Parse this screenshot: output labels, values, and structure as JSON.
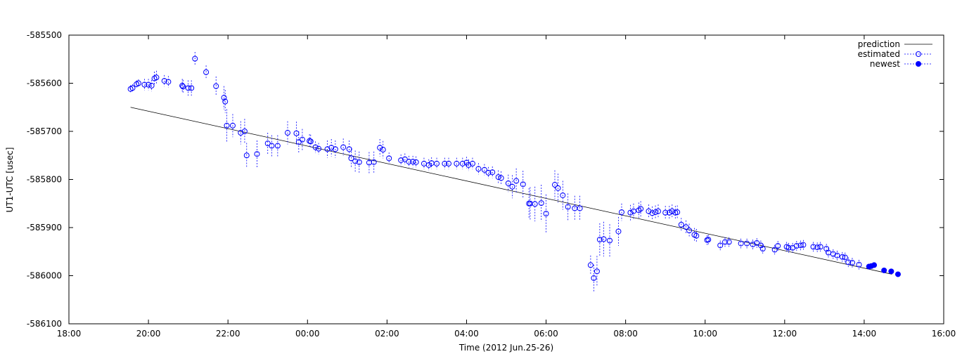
{
  "chart_data": {
    "type": "scatter",
    "xlabel": "Time (2012 Jun.25-26)",
    "ylabel": "UT1-UTC [usec]",
    "x_unit": "hours",
    "xlim": [
      18,
      40
    ],
    "ylim": [
      -586100,
      -585500
    ],
    "grid": false,
    "legend_position": "top-right",
    "x_ticks": [
      {
        "value": 18,
        "label": "18:00"
      },
      {
        "value": 20,
        "label": "20:00"
      },
      {
        "value": 22,
        "label": "22:00"
      },
      {
        "value": 24,
        "label": "00:00"
      },
      {
        "value": 26,
        "label": "02:00"
      },
      {
        "value": 28,
        "label": "04:00"
      },
      {
        "value": 30,
        "label": "06:00"
      },
      {
        "value": 32,
        "label": "08:00"
      },
      {
        "value": 34,
        "label": "10:00"
      },
      {
        "value": 36,
        "label": "12:00"
      },
      {
        "value": 38,
        "label": "14:00"
      },
      {
        "value": 40,
        "label": "16:00"
      }
    ],
    "y_ticks": [
      {
        "value": -585500,
        "label": "-585500"
      },
      {
        "value": -585600,
        "label": "-585600"
      },
      {
        "value": -585700,
        "label": "-585700"
      },
      {
        "value": -585800,
        "label": "-585800"
      },
      {
        "value": -585900,
        "label": "-585900"
      },
      {
        "value": -586000,
        "label": "-586000"
      },
      {
        "value": -586100,
        "label": "-586100"
      }
    ],
    "series": [
      {
        "name": "prediction",
        "type": "line",
        "color": "#000000",
        "x": [
          19.55,
          38.7
        ],
        "y": [
          -585650,
          -585997
        ]
      },
      {
        "name": "estimated",
        "type": "scatter-errorbar",
        "marker": "open-circle",
        "color": "#0000ff",
        "points": [
          [
            19.55,
            -585612,
            8
          ],
          [
            19.6,
            -585610,
            8
          ],
          [
            19.7,
            -585602,
            8
          ],
          [
            19.75,
            -585600,
            8
          ],
          [
            19.9,
            -585603,
            12
          ],
          [
            20.0,
            -585603,
            12
          ],
          [
            20.08,
            -585605,
            12
          ],
          [
            20.15,
            -585590,
            14
          ],
          [
            20.2,
            -585588,
            14
          ],
          [
            20.4,
            -585595,
            12
          ],
          [
            20.5,
            -585597,
            12
          ],
          [
            20.85,
            -585605,
            14
          ],
          [
            20.87,
            -585607,
            14
          ],
          [
            21.0,
            -585610,
            16
          ],
          [
            21.08,
            -585610,
            16
          ],
          [
            21.17,
            -585549,
            14
          ],
          [
            21.45,
            -585577,
            14
          ],
          [
            21.7,
            -585606,
            20
          ],
          [
            21.9,
            -585630,
            24
          ],
          [
            21.93,
            -585638,
            24
          ],
          [
            21.97,
            -585688,
            34
          ],
          [
            22.12,
            -585688,
            24
          ],
          [
            22.32,
            -585703,
            24
          ],
          [
            22.42,
            -585700,
            26
          ],
          [
            22.47,
            -585750,
            26
          ],
          [
            22.73,
            -585747,
            28
          ],
          [
            23.0,
            -585725,
            22
          ],
          [
            23.1,
            -585730,
            22
          ],
          [
            23.25,
            -585730,
            22
          ],
          [
            23.5,
            -585703,
            24
          ],
          [
            23.72,
            -585704,
            24
          ],
          [
            23.78,
            -585722,
            22
          ],
          [
            23.87,
            -585717,
            22
          ],
          [
            24.05,
            -585720,
            14
          ],
          [
            24.08,
            -585721,
            14
          ],
          [
            24.2,
            -585733,
            12
          ],
          [
            24.28,
            -585736,
            12
          ],
          [
            24.5,
            -585737,
            18
          ],
          [
            24.6,
            -585734,
            18
          ],
          [
            24.7,
            -585737,
            18
          ],
          [
            24.9,
            -585733,
            18
          ],
          [
            25.05,
            -585737,
            18
          ],
          [
            25.1,
            -585756,
            20
          ],
          [
            25.2,
            -585762,
            22
          ],
          [
            25.3,
            -585764,
            22
          ],
          [
            25.55,
            -585765,
            22
          ],
          [
            25.67,
            -585764,
            22
          ],
          [
            25.82,
            -585734,
            18
          ],
          [
            25.9,
            -585738,
            18
          ],
          [
            26.05,
            -585756,
            12
          ],
          [
            26.35,
            -585760,
            12
          ],
          [
            26.45,
            -585758,
            12
          ],
          [
            26.55,
            -585763,
            12
          ],
          [
            26.65,
            -585763,
            12
          ],
          [
            26.73,
            -585764,
            12
          ],
          [
            26.93,
            -585767,
            12
          ],
          [
            27.05,
            -585770,
            12
          ],
          [
            27.12,
            -585766,
            12
          ],
          [
            27.25,
            -585767,
            12
          ],
          [
            27.45,
            -585767,
            12
          ],
          [
            27.55,
            -585767,
            12
          ],
          [
            27.75,
            -585767,
            12
          ],
          [
            27.9,
            -585767,
            12
          ],
          [
            28.0,
            -585765,
            12
          ],
          [
            28.05,
            -585770,
            12
          ],
          [
            28.15,
            -585767,
            12
          ],
          [
            28.3,
            -585778,
            12
          ],
          [
            28.45,
            -585780,
            12
          ],
          [
            28.55,
            -585786,
            12
          ],
          [
            28.65,
            -585785,
            12
          ],
          [
            28.8,
            -585795,
            14
          ],
          [
            28.87,
            -585797,
            14
          ],
          [
            29.05,
            -585808,
            18
          ],
          [
            29.15,
            -585815,
            24
          ],
          [
            29.25,
            -585803,
            26
          ],
          [
            29.42,
            -585810,
            28
          ],
          [
            29.57,
            -585850,
            32
          ],
          [
            29.6,
            -585850,
            34
          ],
          [
            29.72,
            -585851,
            36
          ],
          [
            29.88,
            -585849,
            38
          ],
          [
            30.0,
            -585871,
            40
          ],
          [
            30.22,
            -585811,
            30
          ],
          [
            30.3,
            -585818,
            30
          ],
          [
            30.42,
            -585833,
            30
          ],
          [
            30.55,
            -585857,
            28
          ],
          [
            30.72,
            -585860,
            26
          ],
          [
            30.85,
            -585860,
            26
          ],
          [
            31.12,
            -585978,
            20
          ],
          [
            31.2,
            -586005,
            28
          ],
          [
            31.28,
            -585991,
            32
          ],
          [
            31.35,
            -585925,
            34
          ],
          [
            31.45,
            -585924,
            36
          ],
          [
            31.6,
            -585927,
            34
          ],
          [
            31.82,
            -585908,
            30
          ],
          [
            31.9,
            -585868,
            18
          ],
          [
            32.12,
            -585869,
            16
          ],
          [
            32.2,
            -585866,
            16
          ],
          [
            32.33,
            -585864,
            16
          ],
          [
            32.38,
            -585861,
            16
          ],
          [
            32.58,
            -585866,
            14
          ],
          [
            32.67,
            -585870,
            14
          ],
          [
            32.75,
            -585868,
            14
          ],
          [
            32.82,
            -585866,
            14
          ],
          [
            33.0,
            -585869,
            14
          ],
          [
            33.1,
            -585869,
            14
          ],
          [
            33.17,
            -585866,
            14
          ],
          [
            33.25,
            -585869,
            14
          ],
          [
            33.3,
            -585868,
            14
          ],
          [
            33.4,
            -585894,
            14
          ],
          [
            33.52,
            -585899,
            14
          ],
          [
            33.6,
            -585906,
            14
          ],
          [
            33.73,
            -585915,
            14
          ],
          [
            33.78,
            -585917,
            14
          ],
          [
            34.05,
            -585926,
            10
          ],
          [
            34.08,
            -585925,
            10
          ],
          [
            34.38,
            -585937,
            10
          ],
          [
            34.5,
            -585930,
            10
          ],
          [
            34.6,
            -585930,
            10
          ],
          [
            34.9,
            -585933,
            10
          ],
          [
            35.05,
            -585933,
            10
          ],
          [
            35.2,
            -585935,
            10
          ],
          [
            35.3,
            -585932,
            10
          ],
          [
            35.4,
            -585937,
            10
          ],
          [
            35.45,
            -585944,
            10
          ],
          [
            35.75,
            -585946,
            10
          ],
          [
            35.83,
            -585938,
            10
          ],
          [
            36.05,
            -585940,
            10
          ],
          [
            36.1,
            -585942,
            10
          ],
          [
            36.2,
            -585942,
            10
          ],
          [
            36.3,
            -585938,
            10
          ],
          [
            36.4,
            -585937,
            10
          ],
          [
            36.47,
            -585936,
            10
          ],
          [
            36.72,
            -585940,
            10
          ],
          [
            36.82,
            -585941,
            10
          ],
          [
            36.9,
            -585940,
            10
          ],
          [
            37.05,
            -585944,
            10
          ],
          [
            37.1,
            -585952,
            10
          ],
          [
            37.22,
            -585955,
            10
          ],
          [
            37.32,
            -585958,
            10
          ],
          [
            37.45,
            -585961,
            10
          ],
          [
            37.52,
            -585962,
            10
          ],
          [
            37.6,
            -585972,
            10
          ],
          [
            37.7,
            -585973,
            10
          ],
          [
            37.87,
            -585977,
            10
          ]
        ]
      },
      {
        "name": "newest",
        "type": "scatter-errorbar",
        "marker": "filled-circle",
        "color": "#0000ff",
        "points": [
          [
            38.12,
            -585981,
            4
          ],
          [
            38.18,
            -585980,
            4
          ],
          [
            38.25,
            -585978,
            4
          ],
          [
            38.5,
            -585989,
            4
          ],
          [
            38.68,
            -585991,
            4
          ],
          [
            38.85,
            -585997,
            4
          ]
        ]
      }
    ]
  }
}
